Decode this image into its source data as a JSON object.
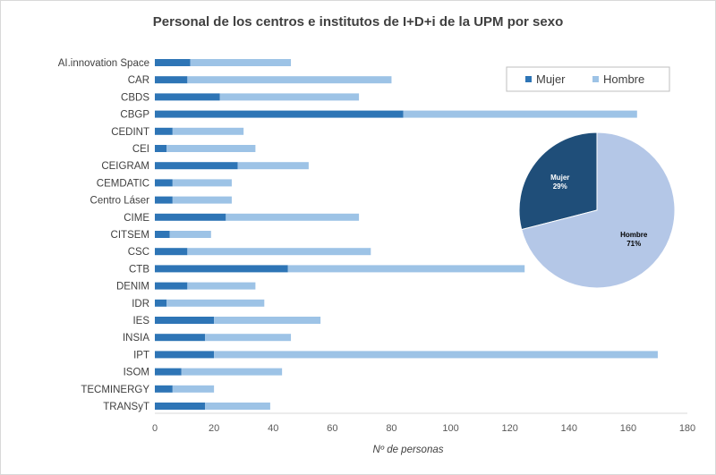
{
  "chart_data": {
    "type": "bar",
    "orientation": "horizontal",
    "stacked": true,
    "title": "Personal de los centros e institutos de I+D+i de la UPM por sexo",
    "xlabel": "Nº de personas",
    "ylabel": "",
    "xlim": [
      0,
      180
    ],
    "xticks": [
      0,
      20,
      40,
      60,
      80,
      100,
      120,
      140,
      160,
      180
    ],
    "grid": false,
    "legend_position": "top-right",
    "categories": [
      "AI.innovation Space",
      "CAR",
      "CBDS",
      "CBGP",
      "CEDINT",
      "CEI",
      "CEIGRAM",
      "CEMDATIC",
      "Centro Láser",
      "CIME",
      "CITSEM",
      "CSC",
      "CTB",
      "DENIM",
      "IDR",
      "IES",
      "INSIA",
      "IPT",
      "ISOM",
      "TECMINERGY",
      "TRANSyT"
    ],
    "series": [
      {
        "name": "Mujer",
        "color": "#2e75b6",
        "values": [
          12,
          11,
          22,
          84,
          6,
          4,
          28,
          6,
          6,
          24,
          5,
          11,
          45,
          11,
          4,
          20,
          17,
          20,
          9,
          6,
          17
        ]
      },
      {
        "name": "Hombre",
        "color": "#9dc3e6",
        "values": [
          34,
          69,
          47,
          79,
          24,
          30,
          24,
          20,
          20,
          45,
          14,
          62,
          80,
          23,
          33,
          36,
          29,
          150,
          34,
          14,
          22
        ]
      }
    ],
    "inset_pie": {
      "type": "pie",
      "slices": [
        {
          "name": "Mujer",
          "label": "Mujer",
          "percent_label": "29%",
          "value": 29,
          "color": "#1f4e79"
        },
        {
          "name": "Hombre",
          "label": "Hombre",
          "percent_label": "71%",
          "value": 71,
          "color": "#b4c7e7"
        }
      ]
    }
  }
}
